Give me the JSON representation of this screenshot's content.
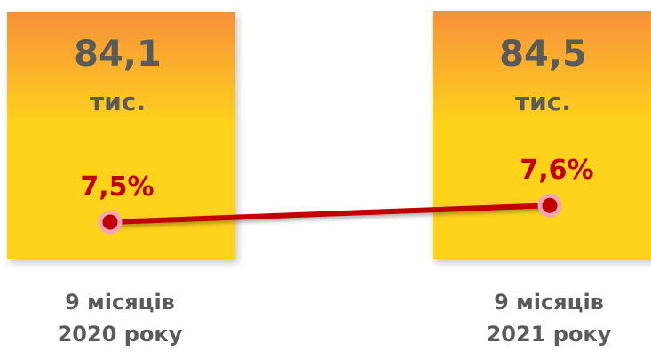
{
  "chart_data": {
    "type": "bar",
    "categories": [
      {
        "line1": "9 місяців",
        "line2": "2020 року"
      },
      {
        "line1": "9 місяців",
        "line2": "2021 року"
      }
    ],
    "bars": {
      "values": [
        84.1,
        84.5
      ],
      "labels": [
        "84,1",
        "84,5"
      ],
      "unit": "тис.",
      "color_top": "#f7913a",
      "color_bottom": "#ffd21c"
    },
    "line": {
      "values": [
        7.5,
        7.6
      ],
      "labels": [
        "7,5%",
        "7,6%"
      ],
      "color": "#c00000",
      "marker_outline": "#f4a6b4"
    }
  }
}
